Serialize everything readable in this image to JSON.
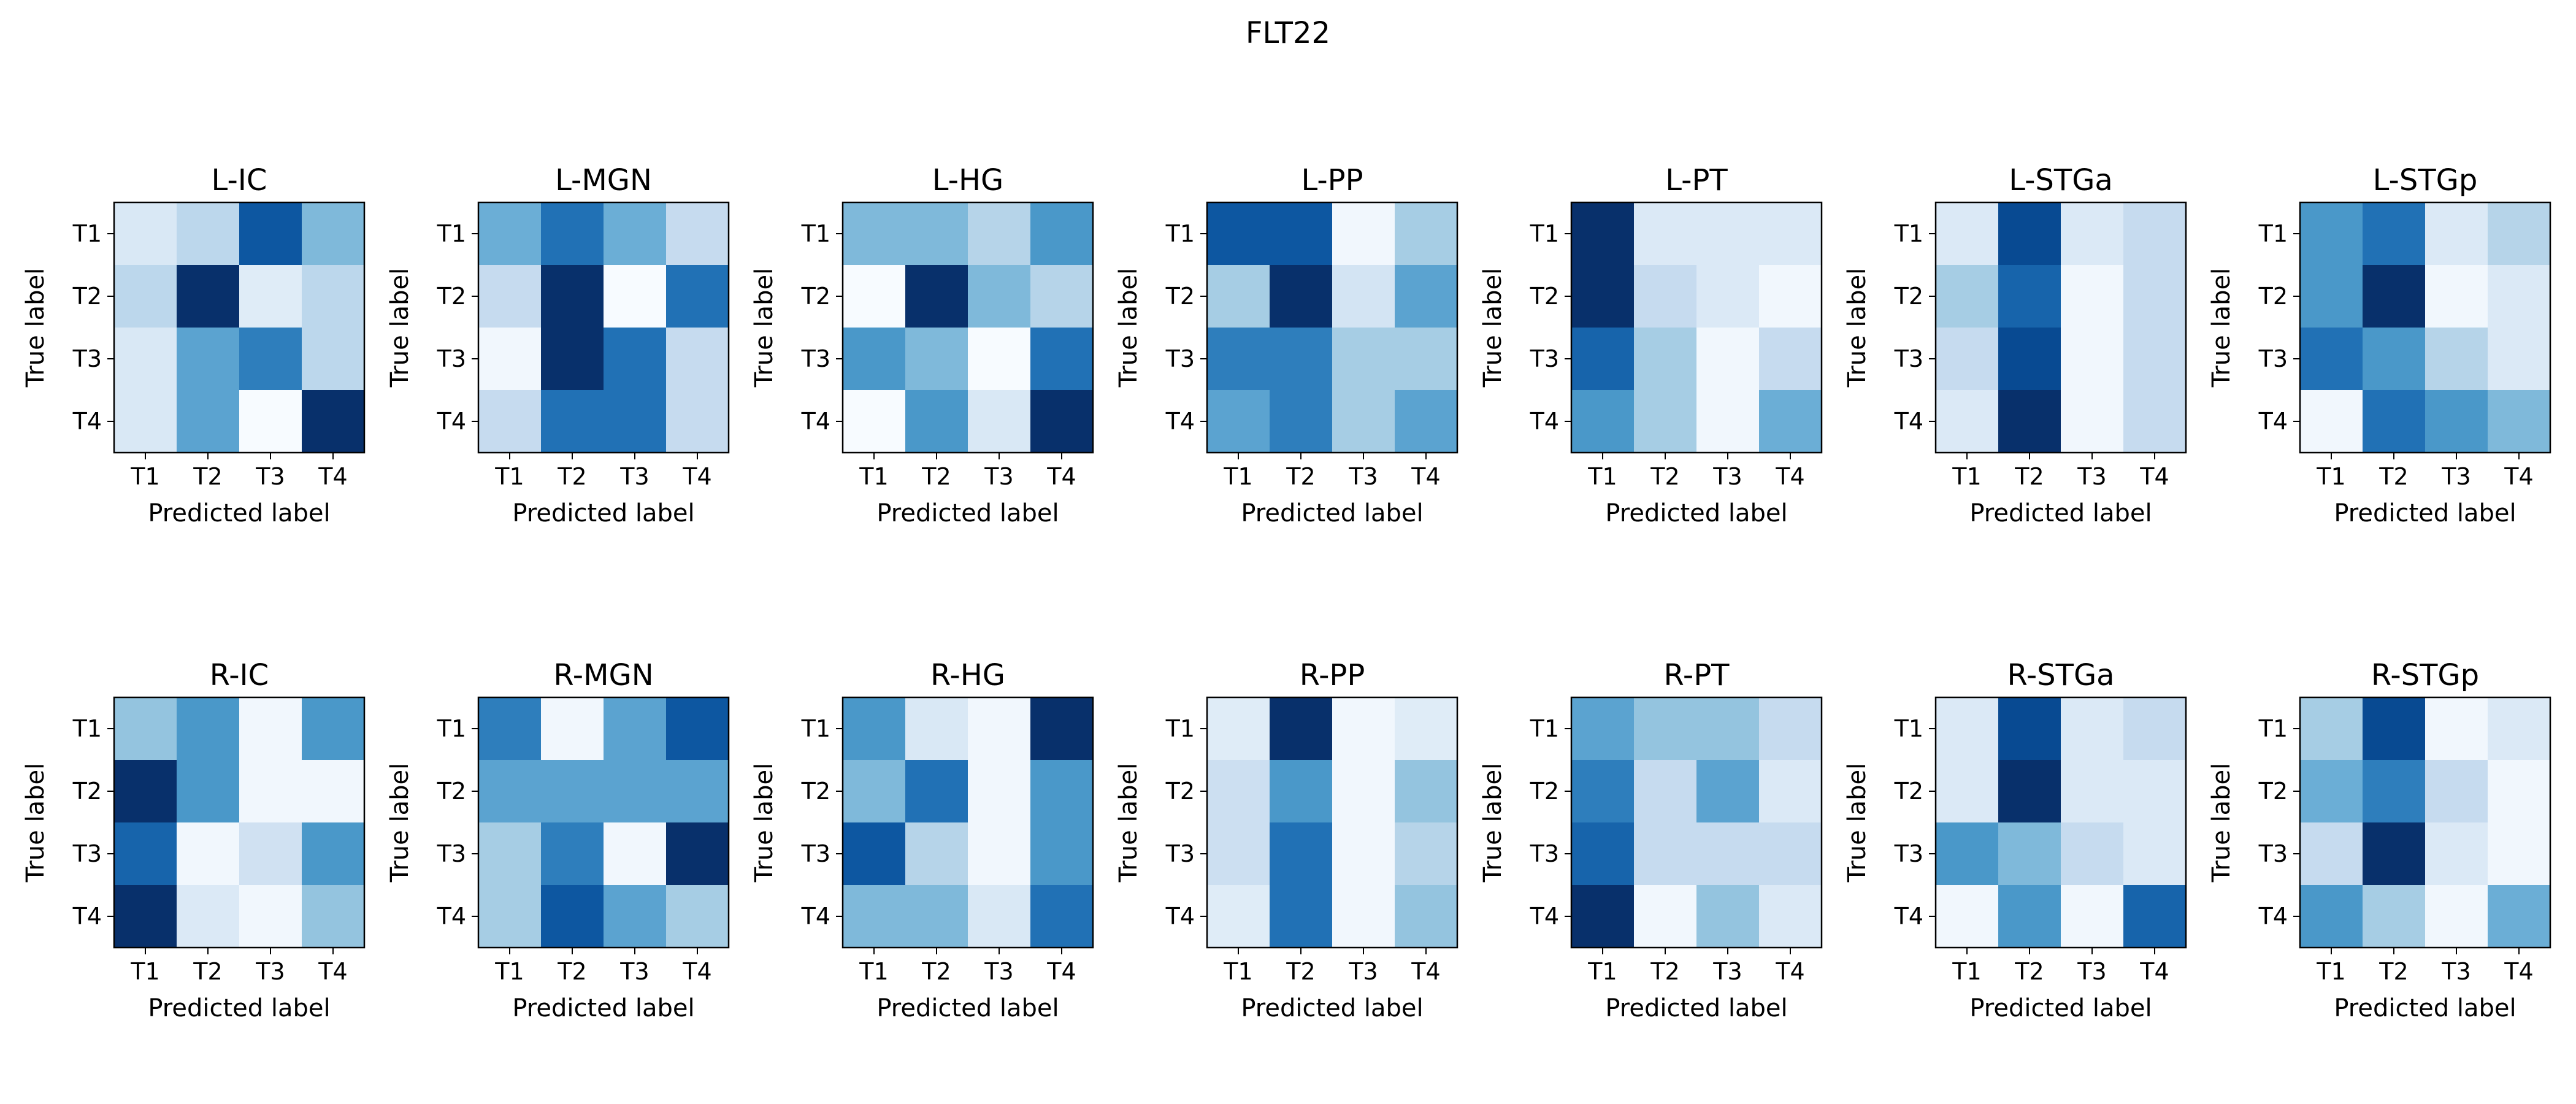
{
  "figure_title": "FLT22",
  "chart_data": {
    "type": "heatmap",
    "colormap": "Blues",
    "suptitle": "FLT22",
    "xlabel": "Predicted label",
    "ylabel": "True label",
    "x_tick_labels": [
      "T1",
      "T2",
      "T3",
      "T4"
    ],
    "y_tick_labels": [
      "T1",
      "T2",
      "T3",
      "T4"
    ],
    "panels": [
      {
        "title": "L-IC",
        "matrix": [
          [
            0.15,
            0.28,
            0.85,
            0.45
          ],
          [
            0.28,
            1.0,
            0.12,
            0.28
          ],
          [
            0.15,
            0.55,
            0.7,
            0.28
          ],
          [
            0.15,
            0.55,
            0.0,
            1.0
          ]
        ]
      },
      {
        "title": "L-MGN",
        "matrix": [
          [
            0.5,
            0.75,
            0.5,
            0.25
          ],
          [
            0.25,
            1.0,
            0.0,
            0.75
          ],
          [
            0.03,
            1.0,
            0.75,
            0.25
          ],
          [
            0.25,
            0.75,
            0.75,
            0.25
          ]
        ]
      },
      {
        "title": "L-HG",
        "matrix": [
          [
            0.45,
            0.45,
            0.3,
            0.6
          ],
          [
            0.0,
            1.0,
            0.45,
            0.3
          ],
          [
            0.6,
            0.45,
            0.0,
            0.75
          ],
          [
            0.0,
            0.6,
            0.15,
            1.0
          ]
        ]
      },
      {
        "title": "L-PP",
        "matrix": [
          [
            0.85,
            0.85,
            0.03,
            0.35
          ],
          [
            0.35,
            1.0,
            0.18,
            0.55
          ],
          [
            0.7,
            0.7,
            0.35,
            0.35
          ],
          [
            0.55,
            0.7,
            0.35,
            0.55
          ]
        ]
      },
      {
        "title": "L-PT",
        "matrix": [
          [
            1.0,
            0.14,
            0.14,
            0.14
          ],
          [
            1.0,
            0.25,
            0.14,
            0.03
          ],
          [
            0.8,
            0.35,
            0.03,
            0.25
          ],
          [
            0.6,
            0.35,
            0.03,
            0.5
          ]
        ]
      },
      {
        "title": "L-STGa",
        "matrix": [
          [
            0.14,
            0.9,
            0.14,
            0.25
          ],
          [
            0.35,
            0.8,
            0.03,
            0.25
          ],
          [
            0.25,
            0.9,
            0.03,
            0.25
          ],
          [
            0.14,
            1.0,
            0.03,
            0.25
          ]
        ]
      },
      {
        "title": "L-STGp",
        "matrix": [
          [
            0.6,
            0.75,
            0.14,
            0.3
          ],
          [
            0.6,
            1.0,
            0.03,
            0.14
          ],
          [
            0.75,
            0.6,
            0.3,
            0.14
          ],
          [
            0.03,
            0.75,
            0.6,
            0.45
          ]
        ]
      },
      {
        "title": "R-IC",
        "matrix": [
          [
            0.4,
            0.6,
            0.03,
            0.6
          ],
          [
            1.0,
            0.6,
            0.03,
            0.03
          ],
          [
            0.8,
            0.03,
            0.2,
            0.6
          ],
          [
            1.0,
            0.14,
            0.03,
            0.4
          ]
        ]
      },
      {
        "title": "R-MGN",
        "matrix": [
          [
            0.7,
            0.03,
            0.55,
            0.85
          ],
          [
            0.55,
            0.55,
            0.55,
            0.55
          ],
          [
            0.35,
            0.7,
            0.03,
            1.0
          ],
          [
            0.35,
            0.85,
            0.55,
            0.35
          ]
        ]
      },
      {
        "title": "R-HG",
        "matrix": [
          [
            0.6,
            0.15,
            0.03,
            1.0
          ],
          [
            0.45,
            0.75,
            0.03,
            0.6
          ],
          [
            0.85,
            0.3,
            0.03,
            0.6
          ],
          [
            0.45,
            0.45,
            0.15,
            0.75
          ]
        ]
      },
      {
        "title": "R-PP",
        "matrix": [
          [
            0.12,
            1.0,
            0.03,
            0.12
          ],
          [
            0.22,
            0.6,
            0.03,
            0.4
          ],
          [
            0.22,
            0.75,
            0.03,
            0.3
          ],
          [
            0.12,
            0.75,
            0.03,
            0.4
          ]
        ]
      },
      {
        "title": "R-PT",
        "matrix": [
          [
            0.55,
            0.4,
            0.4,
            0.25
          ],
          [
            0.7,
            0.25,
            0.55,
            0.14
          ],
          [
            0.8,
            0.25,
            0.25,
            0.25
          ],
          [
            1.0,
            0.03,
            0.4,
            0.14
          ]
        ]
      },
      {
        "title": "R-STGa",
        "matrix": [
          [
            0.14,
            0.9,
            0.14,
            0.25
          ],
          [
            0.14,
            1.0,
            0.14,
            0.14
          ],
          [
            0.6,
            0.45,
            0.25,
            0.14
          ],
          [
            0.03,
            0.6,
            0.03,
            0.8
          ]
        ]
      },
      {
        "title": "R-STGp",
        "matrix": [
          [
            0.35,
            0.9,
            0.03,
            0.14
          ],
          [
            0.5,
            0.7,
            0.25,
            0.03
          ],
          [
            0.25,
            1.0,
            0.14,
            0.03
          ],
          [
            0.6,
            0.35,
            0.03,
            0.5
          ]
        ]
      }
    ]
  }
}
